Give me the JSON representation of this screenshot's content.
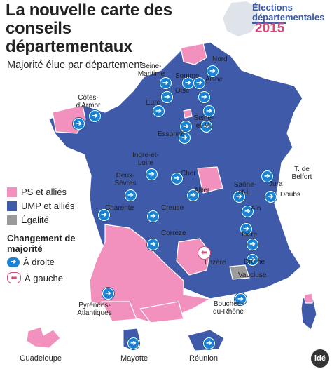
{
  "title": "La nouvelle carte des conseils départementaux",
  "subtitle": "Majorité élue par département",
  "badge": {
    "line1": "Élections",
    "line2": "départementales",
    "year": "2015"
  },
  "colors": {
    "ps": "#f291bd",
    "ump": "#3f5aa8",
    "egalite": "#9a9a9a",
    "change": "#1b82d3",
    "border": "#ffffff"
  },
  "legend": {
    "ps": "PS et alliés",
    "ump": "UMP et alliés",
    "egalite": "Égalité",
    "change_heading": "Changement de majorité",
    "to_right": "À droite",
    "to_left": "À gauche"
  },
  "departments": {
    "nord": "Nord",
    "seine_maritime": "Seine-Maritime",
    "somme": "Somme",
    "aisne": "Aisne",
    "oise": "Oise",
    "cotes_armor": "Côtes-d'Armor",
    "eure": "Eure",
    "seine_et_marne": "Seine-et-M.",
    "essonne": "Essonne",
    "indre_et_loire": "Indre-et-Loire",
    "cher": "Cher",
    "deux_sevres": "Deux-Sèvres",
    "allier": "Allier",
    "saone_et_loire": "Saône-et-L.",
    "jura": "Jura",
    "doubs": "Doubs",
    "belfort": "T. de Belfort",
    "charente": "Charente",
    "creuse": "Creuse",
    "correze": "Corrèze",
    "ain": "Ain",
    "isere": "Isère",
    "drome": "Drôme",
    "lozere": "Lozère",
    "vaucluse": "Vaucluse",
    "pyrenees_atlantiques": "Pyrénées-Atlantiques",
    "bouches_du_rhone": "Bouches-du-Rhône"
  },
  "overseas": {
    "guadeloupe": "Guadeloupe",
    "mayotte": "Mayotte",
    "reunion": "Réunion"
  },
  "credit": "idé"
}
